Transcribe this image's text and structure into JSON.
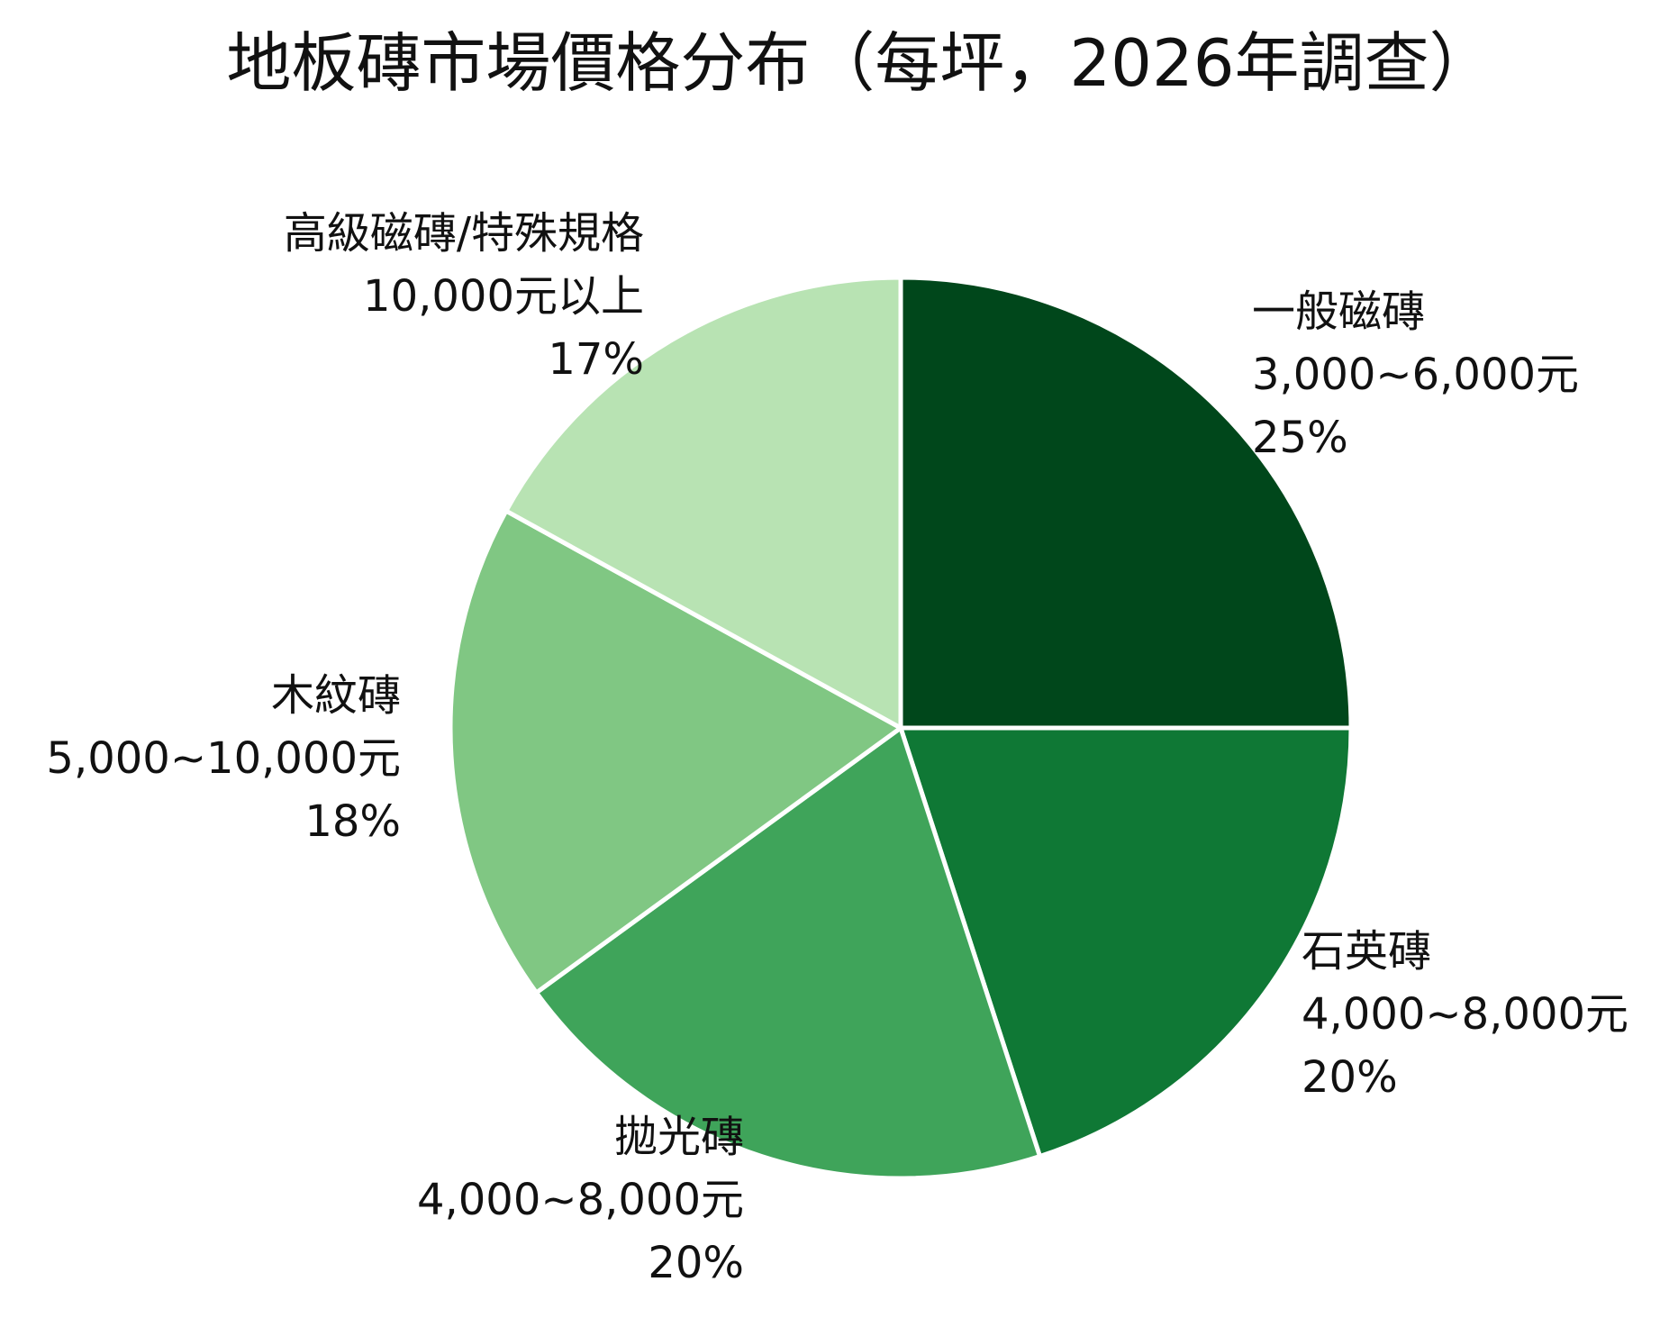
{
  "chart_data": {
    "type": "pie",
    "title": "地板磚市場價格分布（每坪，2026年調查）",
    "start": "12 o'clock",
    "direction": "clockwise",
    "slices": [
      {
        "name": "一般磁磚",
        "range": "3,000~6,000元",
        "percent_label": "25%",
        "value": 25,
        "color": "#00471b"
      },
      {
        "name": "石英磚",
        "range": "4,000~8,000元",
        "percent_label": "20%",
        "value": 20,
        "color": "#0f7835"
      },
      {
        "name": "拋光磚",
        "range": "4,000~8,000元",
        "percent_label": "20%",
        "value": 20,
        "color": "#3fa45a"
      },
      {
        "name": "木紋磚",
        "range": "5,000~10,000元",
        "percent_label": "18%",
        "value": 18,
        "color": "#80c783"
      },
      {
        "name": "高級磁磚/特殊規格",
        "range": "10,000元以上",
        "percent_label": "17%",
        "value": 17,
        "color": "#b8e3b3"
      }
    ],
    "slice_border_color": "#ffffff"
  }
}
